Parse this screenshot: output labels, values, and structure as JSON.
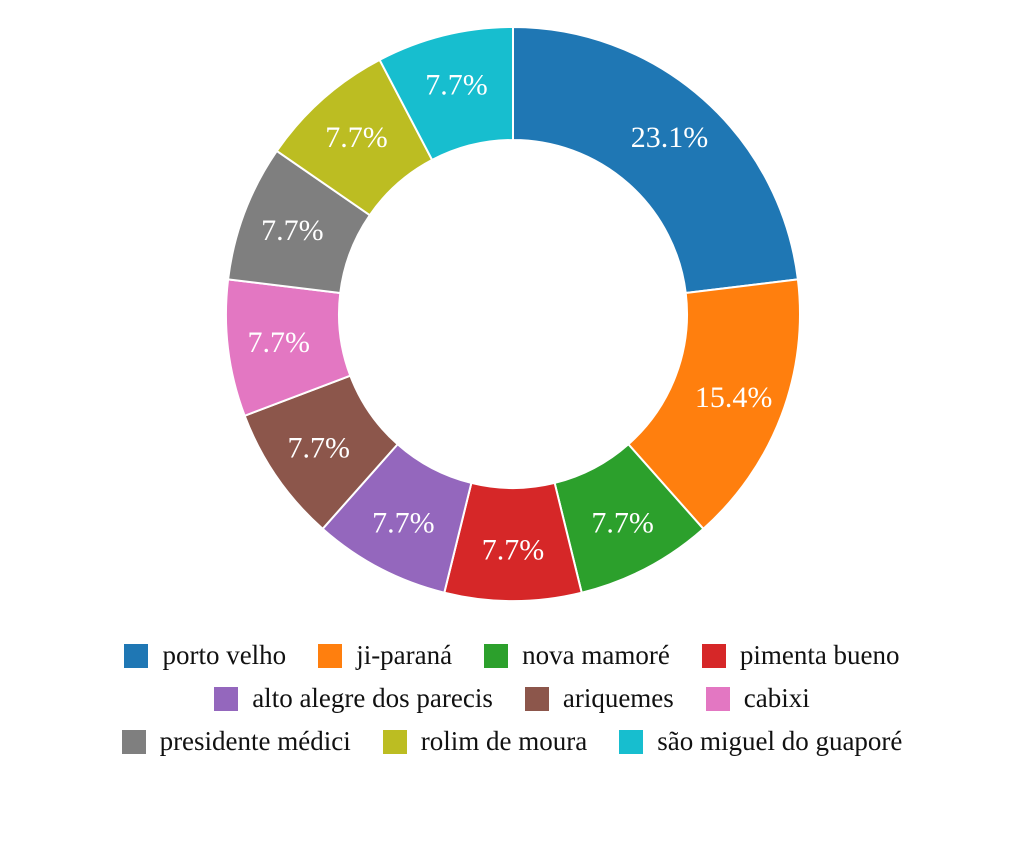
{
  "chart_data": {
    "type": "pie",
    "variant": "donut",
    "title": "",
    "legend_position": "bottom",
    "categories": [
      "porto velho",
      "ji-paraná",
      "nova mamoré",
      "pimenta bueno",
      "alto alegre dos parecis",
      "ariquemes",
      "cabixi",
      "presidente médici",
      "rolim de moura",
      "são miguel do guaporé"
    ],
    "values": [
      3,
      2,
      1,
      1,
      1,
      1,
      1,
      1,
      1,
      1
    ],
    "labels": [
      "23.1%",
      "15.4%",
      "7.7%",
      "7.7%",
      "7.7%",
      "7.7%",
      "7.7%",
      "7.7%",
      "7.7%",
      "7.7%"
    ],
    "colors": [
      "#1f77b4",
      "#ff7f0e",
      "#2ca02c",
      "#d62728",
      "#9467bd",
      "#8c564b",
      "#e377c2",
      "#7f7f7f",
      "#bcbd22",
      "#17becf"
    ]
  }
}
